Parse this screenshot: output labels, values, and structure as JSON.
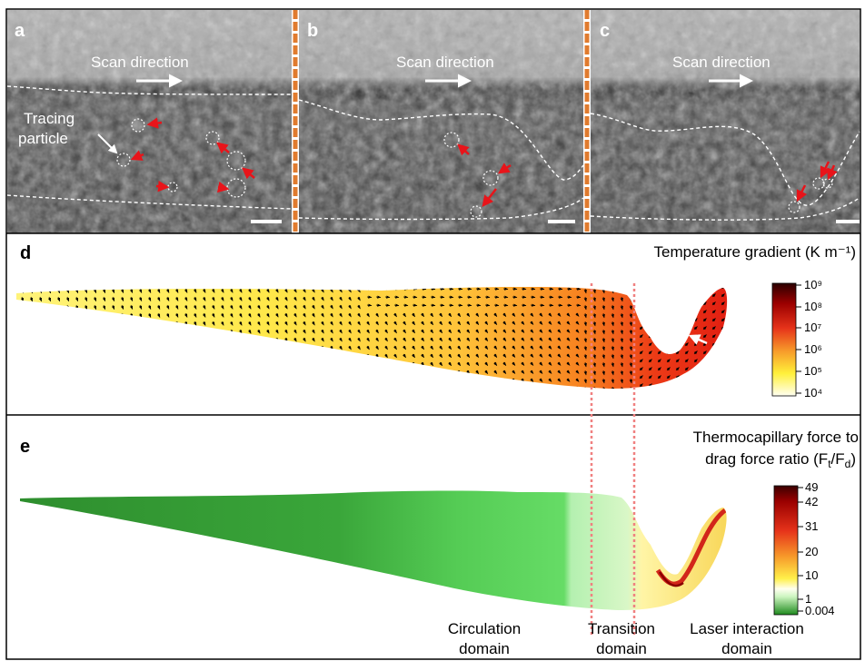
{
  "panels": {
    "a": {
      "letter": "a",
      "scan_label": "Scan direction",
      "tracing_label_line1": "Tracing",
      "tracing_label_line2": "particle"
    },
    "b": {
      "letter": "b",
      "scan_label": "Scan direction"
    },
    "c": {
      "letter": "c",
      "scan_label": "Scan direction"
    },
    "d": {
      "letter": "d",
      "title": "Temperature gradient (K m⁻¹)",
      "colorbar_ticks": [
        "10⁹",
        "10⁸",
        "10⁷",
        "10⁶",
        "10⁵",
        "10⁴"
      ]
    },
    "e": {
      "letter": "e",
      "title_line1": "Thermocapillary force to",
      "title_line2_prefix": "drag force ratio (F",
      "title_sub_t": "t",
      "title_mid": "/F",
      "title_sub_d": "d",
      "title_close": ")",
      "colorbar_ticks": [
        "49",
        "42",
        "31",
        "20",
        "10",
        "1",
        "0.004"
      ]
    }
  },
  "domains": {
    "circulation": [
      "Circulation",
      "domain"
    ],
    "transition": [
      "Transition",
      "domain"
    ],
    "laser": [
      "Laser interaction",
      "domain"
    ]
  },
  "colors": {
    "particle_arrow": "#e8141a",
    "separator": "#e07b2e",
    "dashed_boundary": "#ffffff",
    "domain_divider": "#f08080",
    "green_dark": "#2f8f2f",
    "green_light": "#5fd45f"
  }
}
